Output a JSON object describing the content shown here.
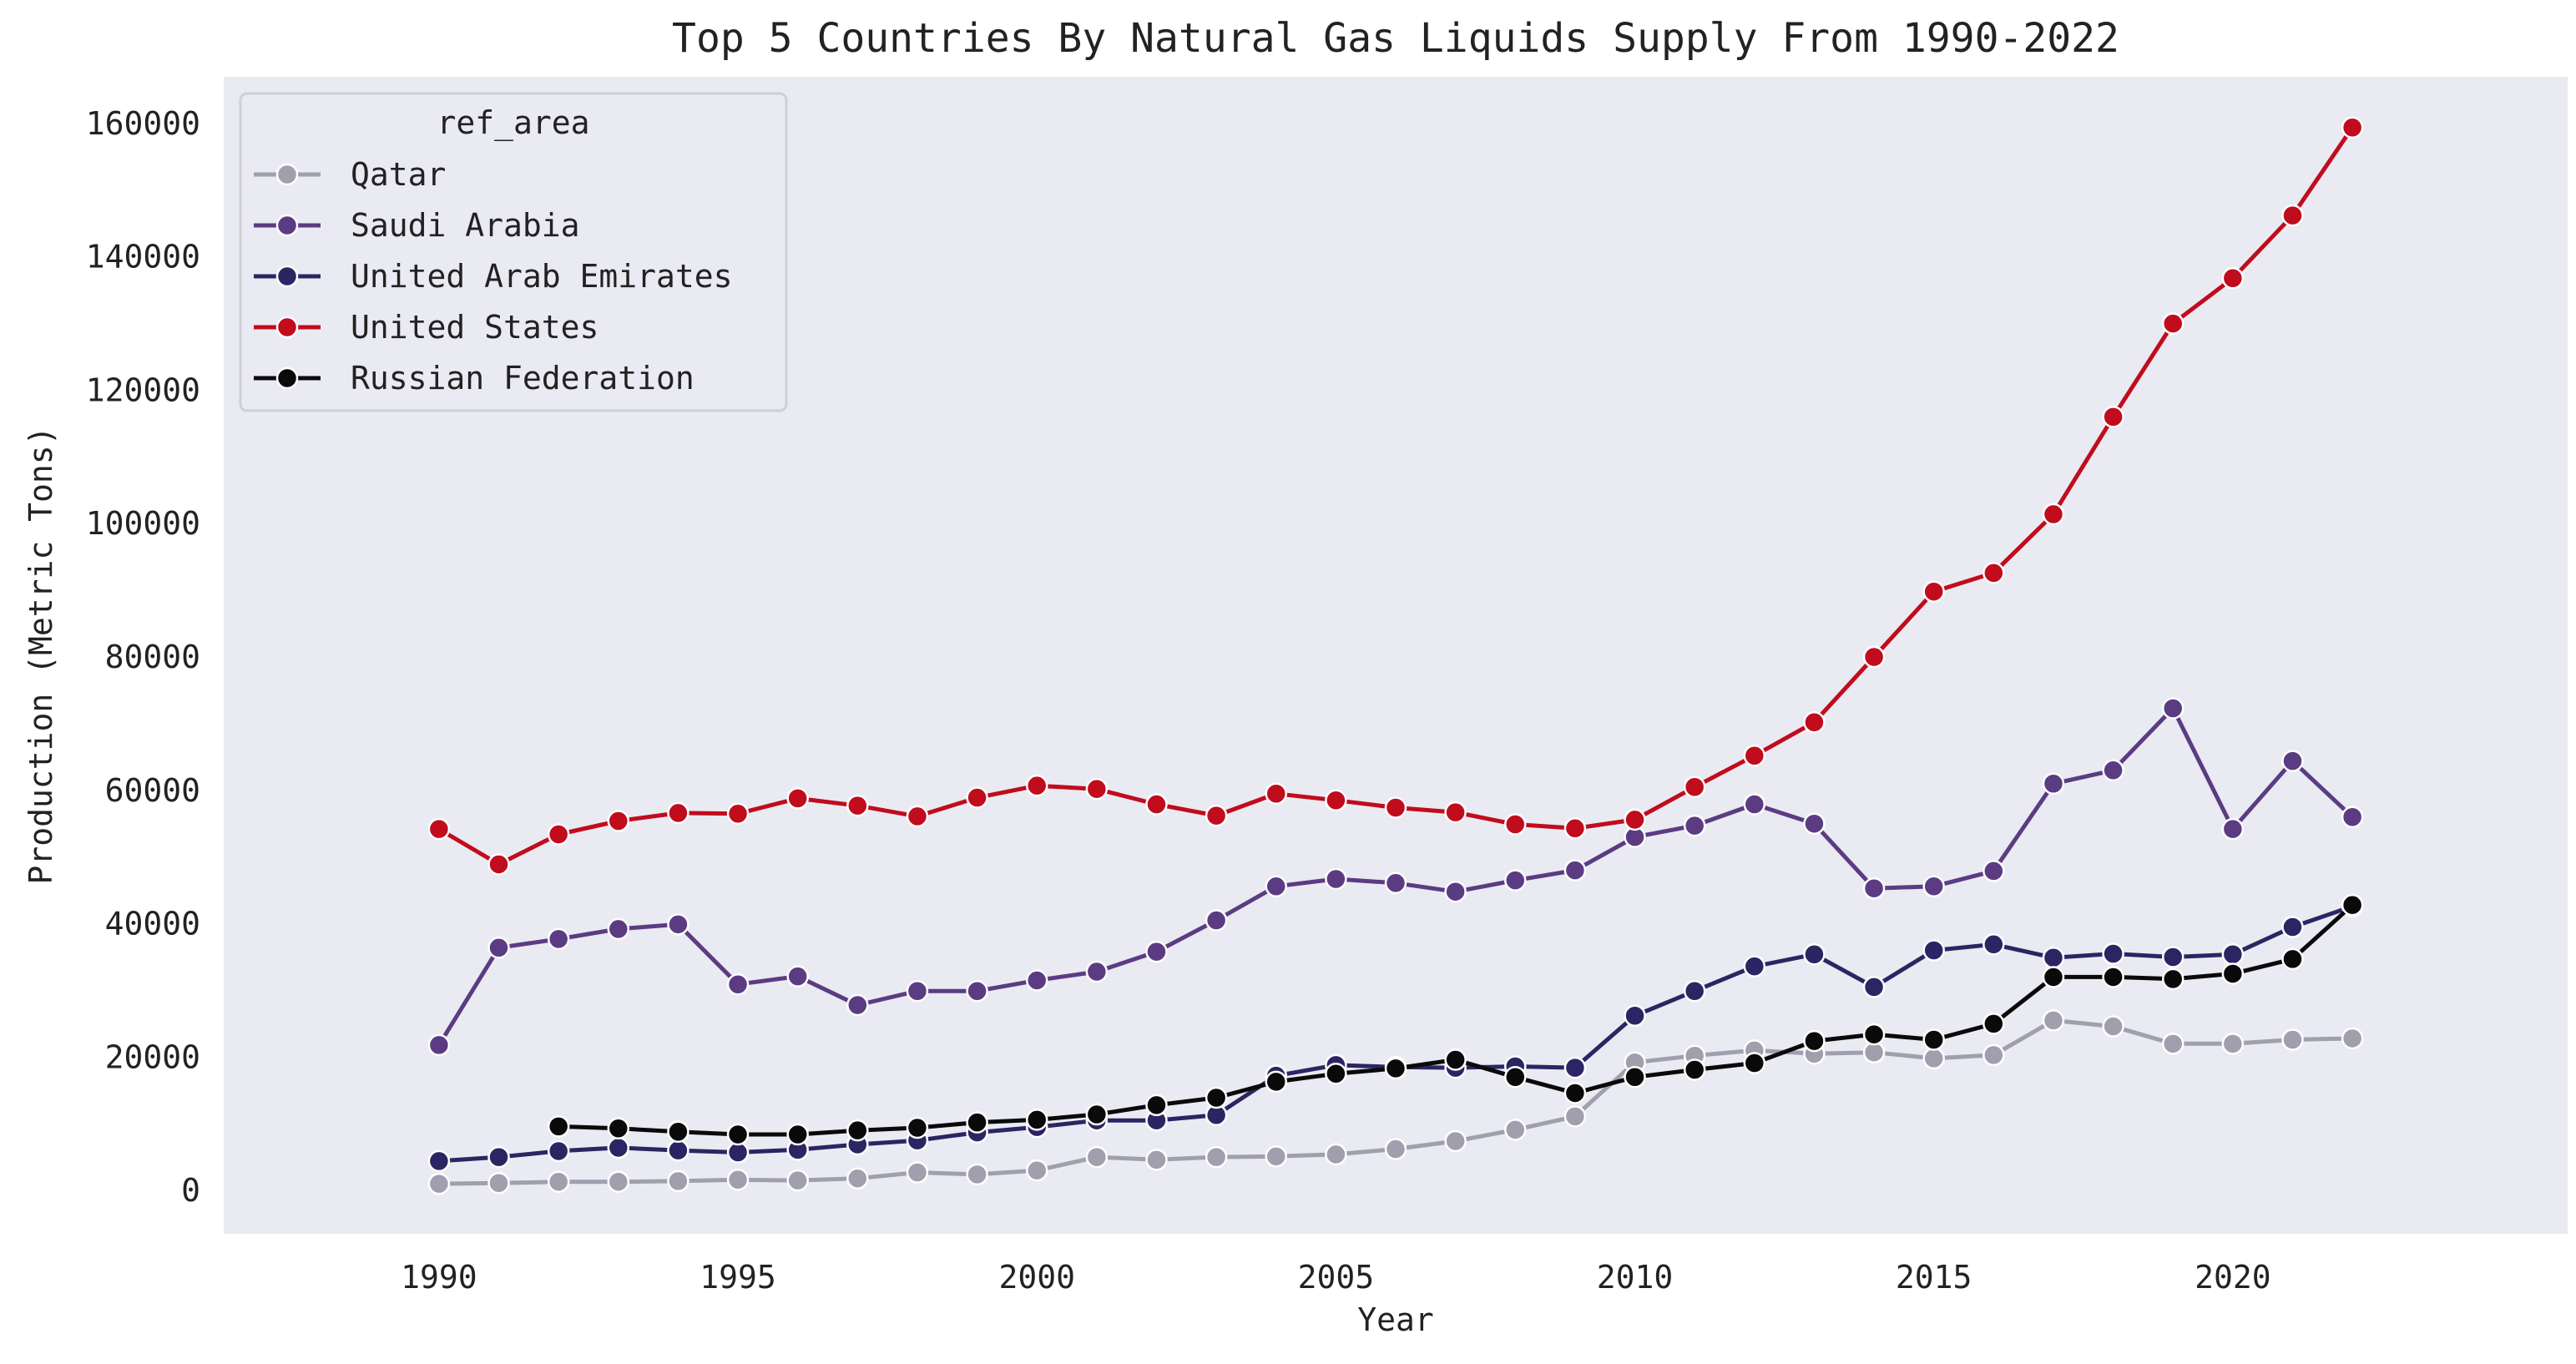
{
  "chart_data": {
    "type": "line",
    "title": "Top 5 Countries By Natural Gas Liquids Supply From 1990-2022",
    "xlabel": "Year",
    "ylabel": "Production (Metric Tons)",
    "xlim": [
      1986.4,
      2025.6
    ],
    "ylim": [
      -6500,
      167000
    ],
    "x_ticks": [
      1990,
      1995,
      2000,
      2005,
      2010,
      2015,
      2020
    ],
    "y_ticks": [
      0,
      20000,
      40000,
      60000,
      80000,
      100000,
      120000,
      140000,
      160000
    ],
    "grid": false,
    "background": "#eaeaf2",
    "legend": {
      "title": "ref_area",
      "placement": "top-left"
    },
    "series": [
      {
        "name": "Qatar",
        "color": "#a09fad",
        "x": [
          1990,
          1991,
          1992,
          1993,
          1994,
          1995,
          1996,
          1997,
          1998,
          1999,
          2000,
          2001,
          2002,
          2003,
          2004,
          2005,
          2006,
          2007,
          2008,
          2009,
          2010,
          2011,
          2012,
          2013,
          2014,
          2015,
          2016,
          2017,
          2018,
          2019,
          2020,
          2021,
          2022
        ],
        "values": [
          1000,
          1100,
          1300,
          1300,
          1400,
          1600,
          1500,
          1800,
          2700,
          2400,
          3000,
          5000,
          4600,
          5000,
          5100,
          5400,
          6200,
          7400,
          9100,
          11100,
          19200,
          20200,
          21000,
          20500,
          20700,
          19800,
          20300,
          25500,
          24600,
          22000,
          22000,
          22600,
          22800
        ]
      },
      {
        "name": "Saudi Arabia",
        "color": "#5b3c82",
        "x": [
          1990,
          1991,
          1992,
          1993,
          1994,
          1995,
          1996,
          1997,
          1998,
          1999,
          2000,
          2001,
          2002,
          2003,
          2004,
          2005,
          2006,
          2007,
          2008,
          2009,
          2010,
          2011,
          2012,
          2013,
          2014,
          2015,
          2016,
          2017,
          2018,
          2019,
          2020,
          2021,
          2022
        ],
        "values": [
          21800,
          36400,
          37700,
          39200,
          39900,
          30900,
          32100,
          27800,
          29900,
          29900,
          31500,
          32800,
          35800,
          40500,
          45600,
          46700,
          46100,
          44800,
          46500,
          48000,
          53000,
          54700,
          57900,
          55000,
          45300,
          45600,
          47900,
          61000,
          63000,
          72300,
          54200,
          64400,
          56000
        ]
      },
      {
        "name": "United Arab Emirates",
        "color": "#2c2563",
        "x": [
          1990,
          1991,
          1992,
          1993,
          1994,
          1995,
          1996,
          1997,
          1998,
          1999,
          2000,
          2001,
          2002,
          2003,
          2004,
          2005,
          2006,
          2007,
          2008,
          2009,
          2010,
          2011,
          2012,
          2013,
          2014,
          2015,
          2016,
          2017,
          2018,
          2019,
          2020,
          2021,
          2022
        ],
        "values": [
          4400,
          5000,
          5900,
          6400,
          6000,
          5700,
          6100,
          6900,
          7500,
          8700,
          9500,
          10500,
          10500,
          11300,
          17200,
          18800,
          18500,
          18400,
          18600,
          18400,
          26200,
          29900,
          33600,
          35400,
          30500,
          36000,
          36900,
          34900,
          35500,
          35000,
          35400,
          39500,
          42600
        ]
      },
      {
        "name": "United States",
        "color": "#c00c1c",
        "x": [
          1990,
          1991,
          1992,
          1993,
          1994,
          1995,
          1996,
          1997,
          1998,
          1999,
          2000,
          2001,
          2002,
          2003,
          2004,
          2005,
          2006,
          2007,
          2008,
          2009,
          2010,
          2011,
          2012,
          2013,
          2014,
          2015,
          2016,
          2017,
          2018,
          2019,
          2020,
          2021,
          2022
        ],
        "values": [
          54200,
          48900,
          53400,
          55400,
          56600,
          56500,
          58800,
          57700,
          56100,
          58900,
          60700,
          60200,
          57900,
          56200,
          59500,
          58500,
          57400,
          56700,
          54900,
          54300,
          55600,
          60500,
          65200,
          70200,
          80000,
          89800,
          92600,
          101400,
          116000,
          130000,
          136800,
          146200,
          159400
        ]
      },
      {
        "name": "Russian Federation",
        "color": "#0a0a0a",
        "x": [
          1992,
          1993,
          1994,
          1995,
          1996,
          1997,
          1998,
          1999,
          2000,
          2001,
          2002,
          2003,
          2004,
          2005,
          2006,
          2007,
          2008,
          2009,
          2010,
          2011,
          2012,
          2013,
          2014,
          2015,
          2016,
          2017,
          2018,
          2019,
          2020,
          2021,
          2022
        ],
        "values": [
          9600,
          9300,
          8800,
          8400,
          8400,
          9000,
          9400,
          10200,
          10600,
          11400,
          12800,
          13900,
          16300,
          17500,
          18300,
          19600,
          17000,
          14600,
          17000,
          18100,
          19100,
          22400,
          23400,
          22600,
          25000,
          32000,
          32000,
          31700,
          32500,
          34700,
          42800
        ]
      }
    ]
  }
}
